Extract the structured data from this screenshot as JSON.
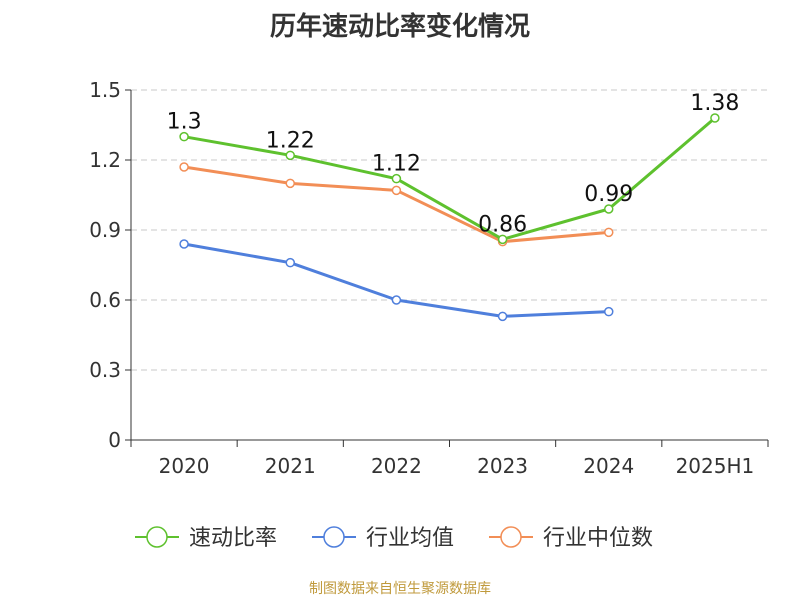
{
  "title": "历年速动比率变化情况",
  "source_note": "制图数据来自恒生聚源数据库",
  "chart_data": {
    "type": "line",
    "categories": [
      "2020",
      "2021",
      "2022",
      "2023",
      "2024",
      "2025H1"
    ],
    "ylim": [
      0,
      1.5
    ],
    "yticks": [
      "0",
      "0.3",
      "0.6",
      "0.9",
      "1.2",
      "1.5"
    ],
    "grid": true,
    "legend_position": "bottom",
    "series": [
      {
        "name": "速动比率",
        "color": "#5ec12e",
        "values": [
          1.3,
          1.22,
          1.12,
          0.86,
          0.99,
          1.38
        ],
        "labels": [
          "1.3",
          "1.22",
          "1.12",
          "0.86",
          "0.99",
          "1.38"
        ]
      },
      {
        "name": "行业均值",
        "color": "#4f7fdc",
        "values": [
          0.84,
          0.76,
          0.6,
          0.53,
          0.55,
          null
        ]
      },
      {
        "name": "行业中位数",
        "color": "#f28e56",
        "values": [
          1.17,
          1.1,
          1.07,
          0.85,
          0.89,
          null
        ]
      }
    ]
  }
}
